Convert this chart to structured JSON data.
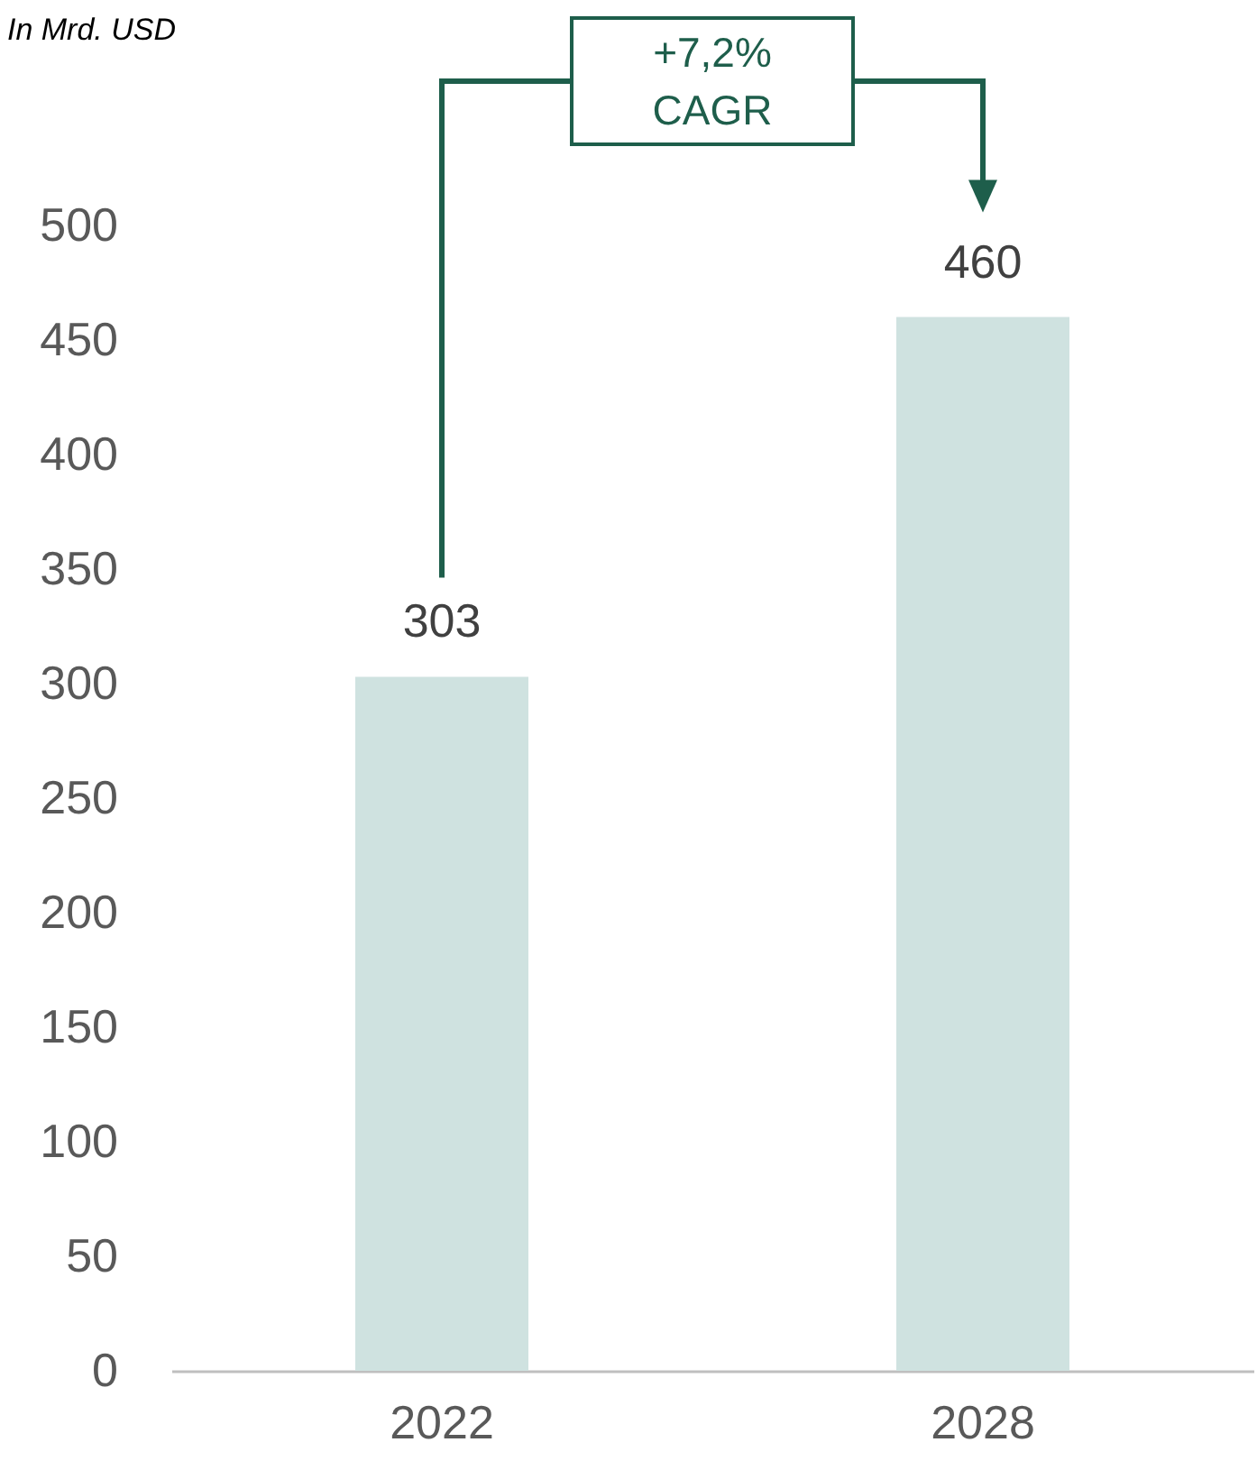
{
  "chart_data": {
    "type": "bar",
    "categories": [
      "2022",
      "2028"
    ],
    "values": [
      303,
      460
    ],
    "color": "#cfe2e0",
    "ylim": [
      0,
      500
    ],
    "yticks": [
      0,
      50,
      100,
      150,
      200,
      250,
      300,
      350,
      400,
      450,
      500
    ],
    "data_labels": true,
    "grid": false,
    "annotations": [
      "In Mrd. USD",
      "+7,2% CAGR"
    ]
  }
}
